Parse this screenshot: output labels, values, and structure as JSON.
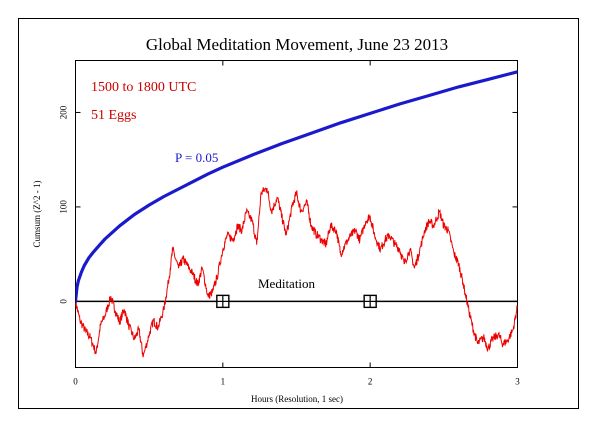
{
  "chart_data": {
    "type": "line",
    "title": "Global Meditation Movement, June 23 2013",
    "xlabel": "Hours (Resolution, 1 sec)",
    "ylabel": "Cumsum (Z^2 - 1)",
    "xlim": [
      0,
      3
    ],
    "ylim": [
      -70,
      255
    ],
    "x_ticks": [
      {
        "value": 0,
        "label": "0"
      },
      {
        "value": 1,
        "label": "1"
      },
      {
        "value": 2,
        "label": "2"
      },
      {
        "value": 3,
        "label": "3"
      }
    ],
    "y_ticks": [
      {
        "value": 0,
        "label": "0"
      },
      {
        "value": 100,
        "label": "100"
      },
      {
        "value": 200,
        "label": "200"
      }
    ],
    "grid": false,
    "annotations": {
      "time_range": "1500 to 1800 UTC",
      "eggs": "51 Eggs",
      "p_label": "P = 0.05",
      "event_label": "Meditation"
    },
    "event_markers": [
      1.0,
      2.0
    ],
    "colors": {
      "data": "#ee0000",
      "p_curve": "#1a1acc",
      "annotation": "#cc0000"
    },
    "series": [
      {
        "role": "cumsum",
        "x": [
          0,
          0.03,
          0.07,
          0.1,
          0.14,
          0.17,
          0.2,
          0.24,
          0.27,
          0.3,
          0.33,
          0.36,
          0.4,
          0.43,
          0.46,
          0.5,
          0.53,
          0.56,
          0.6,
          0.63,
          0.66,
          0.7,
          0.73,
          0.76,
          0.8,
          0.83,
          0.86,
          0.9,
          0.93,
          0.96,
          1.0,
          1.03,
          1.07,
          1.1,
          1.13,
          1.16,
          1.2,
          1.23,
          1.26,
          1.3,
          1.33,
          1.37,
          1.4,
          1.43,
          1.47,
          1.5,
          1.53,
          1.57,
          1.6,
          1.63,
          1.67,
          1.7,
          1.73,
          1.77,
          1.8,
          1.83,
          1.87,
          1.9,
          1.93,
          1.97,
          2.0,
          2.03,
          2.07,
          2.1,
          2.13,
          2.17,
          2.2,
          2.23,
          2.27,
          2.3,
          2.33,
          2.37,
          2.4,
          2.43,
          2.47,
          2.5,
          2.53,
          2.57,
          2.6,
          2.63,
          2.67,
          2.7,
          2.73,
          2.77,
          2.8,
          2.83,
          2.87,
          2.9,
          2.93,
          2.97,
          3.0
        ],
        "y": [
          0,
          -20,
          -32,
          -38,
          -55,
          -25,
          -15,
          5,
          -10,
          -22,
          -8,
          -25,
          -40,
          -30,
          -58,
          -35,
          -20,
          -28,
          -8,
          20,
          55,
          35,
          45,
          38,
          28,
          18,
          35,
          5,
          10,
          25,
          55,
          70,
          65,
          80,
          75,
          95,
          85,
          60,
          115,
          120,
          95,
          110,
          90,
          70,
          100,
          115,
          95,
          105,
          80,
          72,
          65,
          60,
          80,
          75,
          50,
          60,
          70,
          75,
          65,
          85,
          90,
          70,
          55,
          65,
          70,
          60,
          55,
          40,
          55,
          35,
          50,
          75,
          85,
          80,
          95,
          80,
          75,
          50,
          40,
          20,
          -10,
          -30,
          -45,
          -38,
          -50,
          -40,
          -35,
          -45,
          -42,
          -30,
          -5
        ]
      },
      {
        "role": "p05_envelope",
        "name": "P = 0.05",
        "x": [
          0,
          0.01,
          0.02,
          0.04,
          0.06,
          0.09,
          0.12,
          0.16,
          0.2,
          0.25,
          0.3,
          0.4,
          0.5,
          0.6,
          0.7,
          0.8,
          0.9,
          1.0,
          1.2,
          1.4,
          1.6,
          1.8,
          2.0,
          2.2,
          2.4,
          2.6,
          2.8,
          3.0
        ],
        "y": [
          0,
          15,
          22,
          31,
          38,
          46,
          52,
          59,
          66,
          73,
          80,
          92,
          102,
          111,
          119,
          127,
          135,
          142,
          155,
          167,
          178,
          189,
          199,
          209,
          218,
          227,
          235,
          243
        ]
      }
    ]
  }
}
